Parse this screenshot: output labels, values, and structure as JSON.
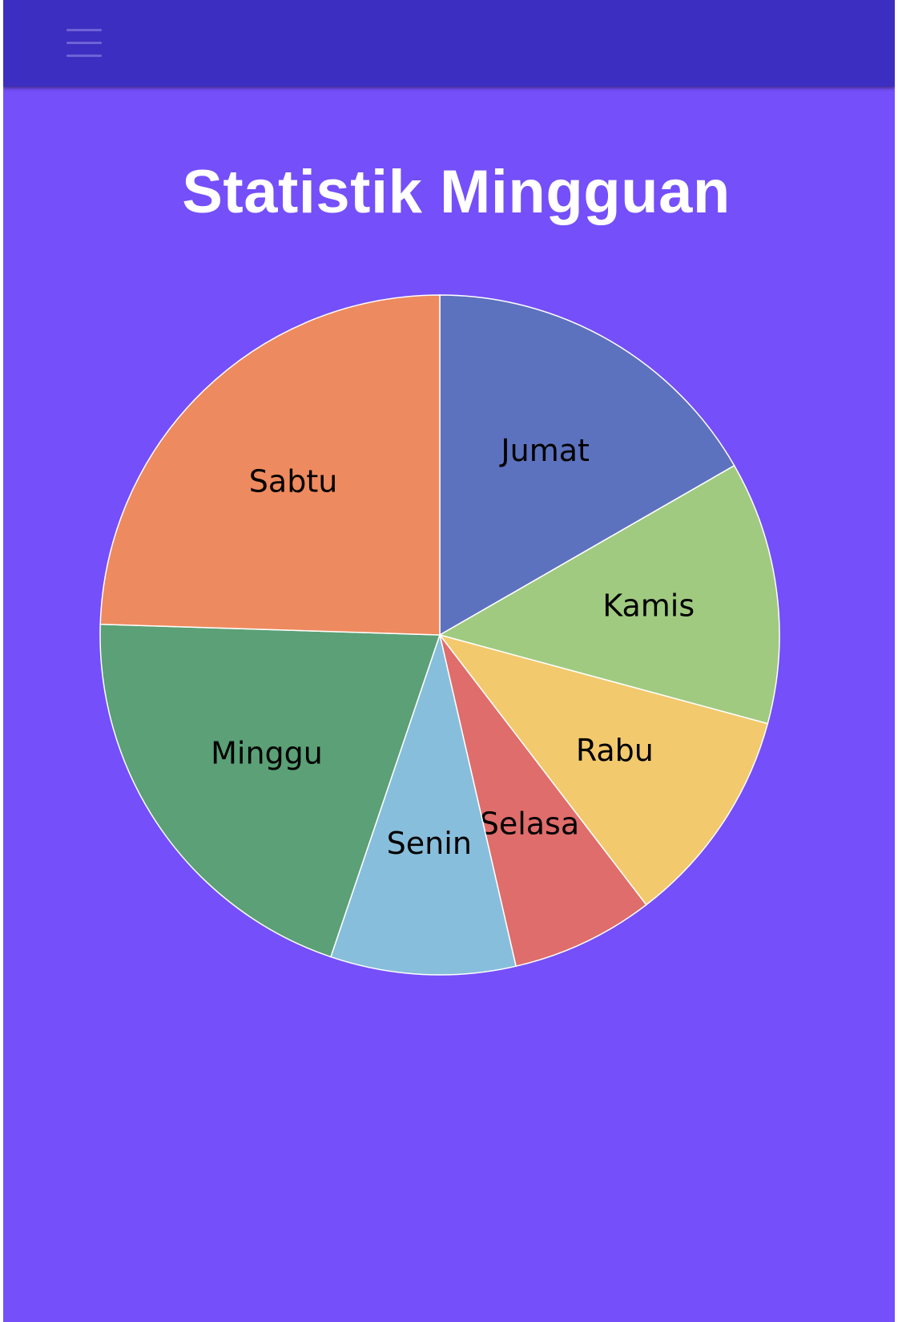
{
  "header": {
    "menu_icon": "hamburger-menu-icon"
  },
  "page": {
    "title": "Statistik Mingguan"
  },
  "colors": {
    "background": "#754ff9",
    "topbar": "#3c2ec0"
  },
  "chart_data": {
    "type": "pie",
    "title": "Statistik Mingguan",
    "start_angle_deg": 0,
    "direction": "clockwise-from-top",
    "slices": [
      {
        "label": "Jumat",
        "value": 16.7,
        "color": "#5d72be"
      },
      {
        "label": "Kamis",
        "value": 12.5,
        "color": "#a0ca80"
      },
      {
        "label": "Rabu",
        "value": 10.4,
        "color": "#f2c96d"
      },
      {
        "label": "Selasa",
        "value": 6.8,
        "color": "#df6d6b"
      },
      {
        "label": "Senin",
        "value": 8.8,
        "color": "#87bedb"
      },
      {
        "label": "Minggu",
        "value": 20.3,
        "color": "#5ba076"
      },
      {
        "label": "Sabtu",
        "value": 24.5,
        "color": "#ee8a5f"
      }
    ]
  }
}
